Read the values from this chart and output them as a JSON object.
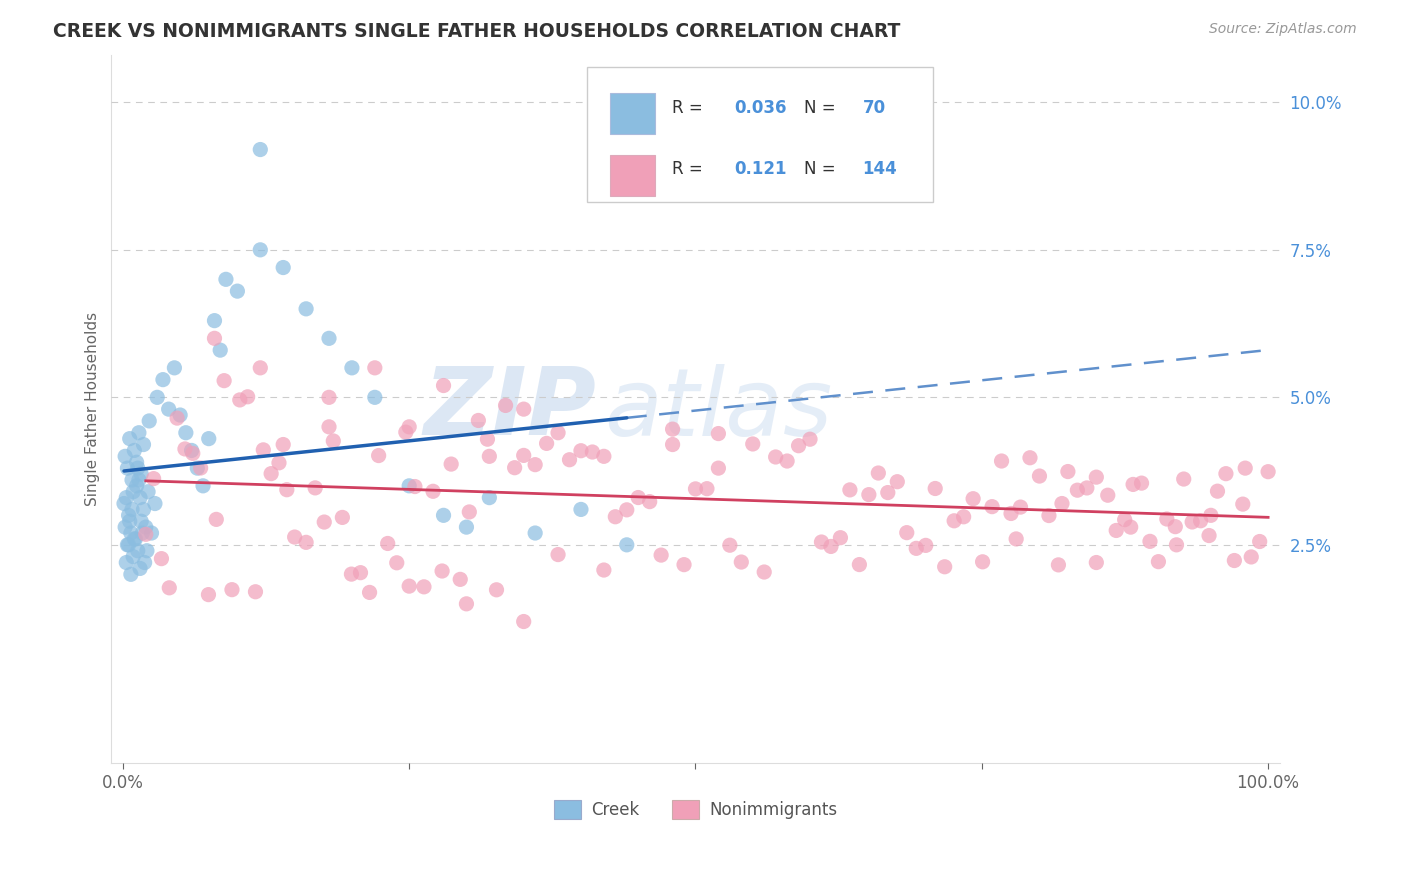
{
  "title": "CREEK VS NONIMMIGRANTS SINGLE FATHER HOUSEHOLDS CORRELATION CHART",
  "source": "Source: ZipAtlas.com",
  "ylabel": "Single Father Households",
  "creek_R": 0.036,
  "creek_N": 70,
  "nonimm_R": 0.121,
  "nonimm_N": 144,
  "creek_color": "#8bbde0",
  "nonimm_color": "#f0a0b8",
  "creek_line_color": "#2060b0",
  "nonimm_line_color": "#d04060",
  "creek_dash_color": "#6090cc",
  "background_color": "#ffffff",
  "legend_text_color": "#4a90d9",
  "legend_label_color": "#333333",
  "ytick_color": "#4a90d9",
  "xtick_color": "#666666",
  "grid_color": "#cccccc",
  "title_color": "#333333",
  "source_color": "#999999",
  "ylabel_color": "#666666",
  "watermark_color": "#d0dff0",
  "xlim": [
    -0.01,
    1.01
  ],
  "ylim": [
    -0.012,
    0.108
  ]
}
